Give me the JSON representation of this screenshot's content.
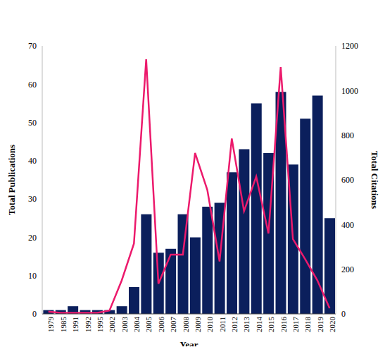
{
  "chart_data": {
    "type": "bar",
    "x_label": "Year",
    "categories": [
      "1979",
      "1985",
      "1991",
      "1992",
      "1995",
      "2002",
      "2003",
      "2004",
      "2005",
      "2006",
      "2007",
      "2008",
      "2009",
      "2010",
      "2011",
      "2012",
      "2013",
      "2014",
      "2015",
      "2016",
      "2017",
      "2018",
      "2019",
      "2020"
    ],
    "series": [
      {
        "name": "Total Publications",
        "type": "bar",
        "color": "#0b1f5c",
        "values": [
          1,
          1,
          2,
          1,
          1,
          1,
          2,
          7,
          26,
          16,
          17,
          26,
          20,
          28,
          29,
          37,
          43,
          55,
          42,
          58,
          39,
          51,
          57,
          25
        ]
      },
      {
        "name": "Total Citations",
        "type": "line",
        "axis": "y2",
        "color": "#ec1a6c",
        "values": [
          10,
          5,
          5,
          5,
          5,
          15,
          150,
          315,
          1140,
          135,
          265,
          265,
          720,
          555,
          235,
          785,
          460,
          615,
          360,
          1105,
          335,
          245,
          150,
          25
        ]
      }
    ],
    "ylim": [
      0,
      70
    ],
    "yticks": [
      0,
      10,
      20,
      30,
      40,
      50,
      60,
      70
    ],
    "y2lim": [
      0,
      1200
    ],
    "y2ticks": [
      0,
      200,
      400,
      600,
      800,
      1000,
      1200
    ],
    "grid": false
  }
}
